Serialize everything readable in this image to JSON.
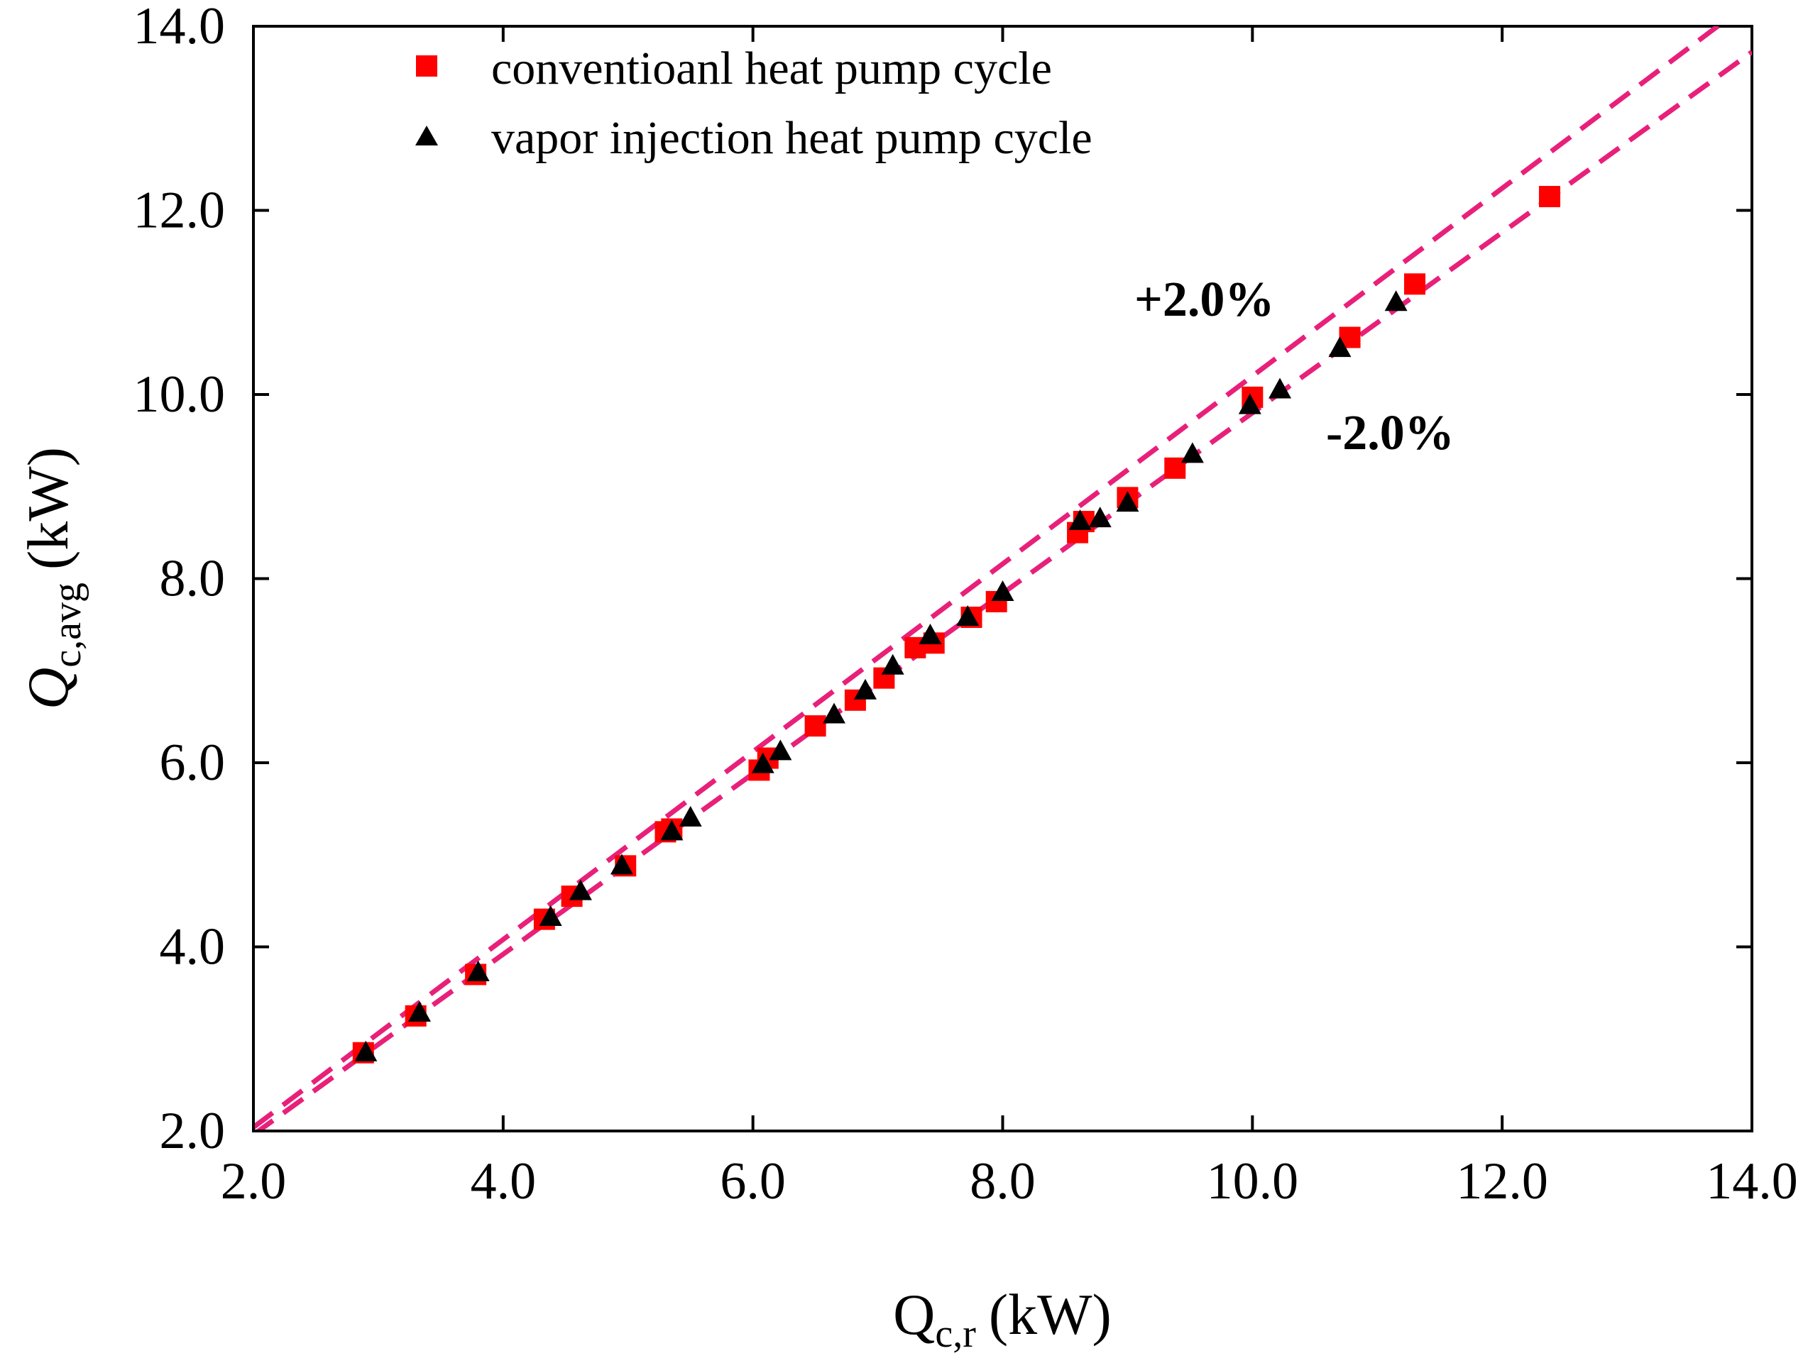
{
  "chart_data": {
    "type": "scatter",
    "title": "",
    "xlabel": "Q",
    "xlabel_sub": "c,r",
    "xlabel_unit": "(kW)",
    "ylabel": "Q",
    "ylabel_sub": "c,avg",
    "ylabel_unit": "(kW)",
    "xlim": [
      2.0,
      14.0
    ],
    "ylim": [
      2.0,
      14.0
    ],
    "xticks": [
      "2.0",
      "4.0",
      "6.0",
      "8.0",
      "10.0",
      "12.0",
      "14.0"
    ],
    "yticks": [
      "2.0",
      "4.0",
      "6.0",
      "8.0",
      "10.0",
      "12.0",
      "14.0"
    ],
    "grid": false,
    "legend_position": "top",
    "series": [
      {
        "name": "conventioanl heat pump cycle",
        "marker": "square",
        "color": "#ff0000",
        "points": [
          [
            2.88,
            2.85
          ],
          [
            3.3,
            3.25
          ],
          [
            3.78,
            3.7
          ],
          [
            4.33,
            4.3
          ],
          [
            4.55,
            4.55
          ],
          [
            4.98,
            4.88
          ],
          [
            5.3,
            5.25
          ],
          [
            5.35,
            5.28
          ],
          [
            6.05,
            5.92
          ],
          [
            6.12,
            6.05
          ],
          [
            6.5,
            6.4
          ],
          [
            6.82,
            6.68
          ],
          [
            7.05,
            6.92
          ],
          [
            7.3,
            7.25
          ],
          [
            7.45,
            7.3
          ],
          [
            7.75,
            7.58
          ],
          [
            7.95,
            7.75
          ],
          [
            8.6,
            8.5
          ],
          [
            8.65,
            8.62
          ],
          [
            9.0,
            8.88
          ],
          [
            9.38,
            9.2
          ],
          [
            10.0,
            9.97
          ],
          [
            10.78,
            10.62
          ],
          [
            11.3,
            11.2
          ],
          [
            12.38,
            12.15
          ]
        ]
      },
      {
        "name": "vapor injection heat pump cycle",
        "marker": "triangle",
        "color": "#000000",
        "points": [
          [
            2.9,
            2.85
          ],
          [
            3.33,
            3.28
          ],
          [
            3.8,
            3.72
          ],
          [
            4.38,
            4.32
          ],
          [
            4.62,
            4.6
          ],
          [
            4.95,
            4.88
          ],
          [
            5.35,
            5.25
          ],
          [
            5.5,
            5.4
          ],
          [
            6.08,
            5.98
          ],
          [
            6.22,
            6.12
          ],
          [
            6.65,
            6.52
          ],
          [
            6.9,
            6.78
          ],
          [
            7.12,
            7.05
          ],
          [
            7.42,
            7.38
          ],
          [
            7.72,
            7.58
          ],
          [
            8.0,
            7.85
          ],
          [
            8.62,
            8.62
          ],
          [
            8.78,
            8.65
          ],
          [
            9.0,
            8.82
          ],
          [
            9.52,
            9.35
          ],
          [
            9.98,
            9.88
          ],
          [
            10.22,
            10.05
          ],
          [
            10.7,
            10.5
          ],
          [
            11.15,
            11.0
          ]
        ]
      }
    ],
    "reference_lines": [
      {
        "label": "+2.0%",
        "slope": 1.02,
        "color": "#e8207a",
        "style": "dashed"
      },
      {
        "label": "-2.0%",
        "slope": 0.98,
        "color": "#e8207a",
        "style": "dashed"
      }
    ]
  }
}
